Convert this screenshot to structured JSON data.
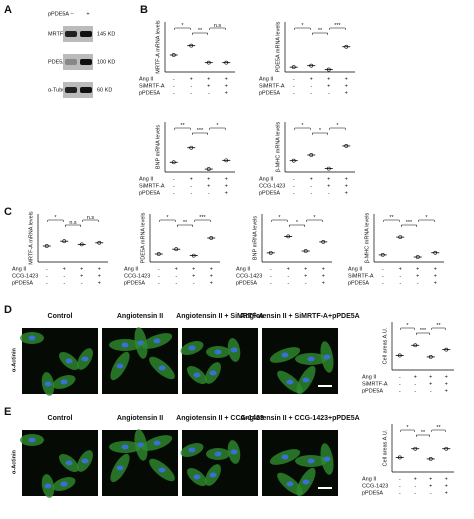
{
  "panel_a": {
    "letter": "A",
    "label": "pPDE5A",
    "signs": [
      "−",
      "+"
    ],
    "bands": [
      {
        "name": "MRTF-A",
        "size": "145 KD"
      },
      {
        "name": "PDE5A",
        "size": "100 KD"
      },
      {
        "name": "α-Tubulin",
        "size": "60 KD"
      }
    ]
  },
  "panel_b": {
    "letter": "B",
    "plots": [
      {
        "y_label": "MRTF-A mRNA levels",
        "means": [
          1,
          1.55,
          0.55,
          0.55
        ],
        "ylim": [
          0,
          2
        ],
        "rows": [
          {
            "label": "Ang II",
            "signs": [
              "-",
              "+",
              "+",
              "+"
            ]
          },
          {
            "label": "SiMRTF-A",
            "signs": [
              "-",
              "-",
              "+",
              "+"
            ]
          },
          {
            "label": "pPDE5A",
            "signs": [
              "-",
              "-",
              "-",
              "+"
            ]
          }
        ],
        "significance": [
          "*",
          "**",
          "n.s"
        ]
      },
      {
        "y_label": "PDE5A mRNA levels",
        "means": [
          1,
          1.3,
          0.5,
          5.2
        ],
        "ylim": [
          0,
          7
        ],
        "rows": [
          {
            "label": "Ang II",
            "signs": [
              "-",
              "+",
              "+",
              "+"
            ]
          },
          {
            "label": "SiMRTF-A",
            "signs": [
              "-",
              "-",
              "+",
              "+"
            ]
          },
          {
            "label": "pPDE5A",
            "signs": [
              "-",
              "-",
              "-",
              "+"
            ]
          }
        ],
        "significance": [
          "*",
          "**",
          "***"
        ]
      },
      {
        "y_label": "BNP mRNA levels",
        "means": [
          1,
          2.5,
          0.3,
          1.2
        ],
        "ylim": [
          0,
          3.5
        ],
        "rows": [
          {
            "label": "Ang II",
            "signs": [
              "-",
              "+",
              "+",
              "+"
            ]
          },
          {
            "label": "SiMRTF-A",
            "signs": [
              "-",
              "-",
              "+",
              "+"
            ]
          },
          {
            "label": "pPDE5A",
            "signs": [
              "-",
              "-",
              "-",
              "+"
            ]
          }
        ],
        "significance": [
          "**",
          "***",
          "*"
        ]
      },
      {
        "y_label": "β-MHC mRNA levels",
        "means": [
          1,
          1.5,
          0.3,
          2.3
        ],
        "ylim": [
          0,
          3
        ],
        "rows": [
          {
            "label": "Ang II",
            "signs": [
              "-",
              "+",
              "+",
              "+"
            ]
          },
          {
            "label": "CCG-1423",
            "signs": [
              "-",
              "-",
              "+",
              "+"
            ]
          },
          {
            "label": "pPDE5A",
            "signs": [
              "-",
              "-",
              "-",
              "+"
            ]
          }
        ],
        "significance": [
          "*",
          "*",
          "*"
        ]
      }
    ]
  },
  "panel_c": {
    "letter": "C",
    "plots": [
      {
        "y_label": "MRTF-A mRNA levels",
        "means": [
          1,
          1.3,
          1.1,
          1.2
        ],
        "ylim": [
          0,
          2
        ],
        "rows": [
          {
            "label": "Ang II",
            "signs": [
              "-",
              "+",
              "+",
              "+"
            ]
          },
          {
            "label": "CCG-1423",
            "signs": [
              "-",
              "-",
              "+",
              "+"
            ]
          },
          {
            "label": "pPDE5A",
            "signs": [
              "-",
              "-",
              "-",
              "+"
            ]
          }
        ],
        "significance": [
          "*",
          "n.s",
          "n.s"
        ]
      },
      {
        "y_label": "PDE5A mRNA levels",
        "means": [
          1,
          1.6,
          0.8,
          3
        ],
        "ylim": [
          0,
          4
        ],
        "rows": [
          {
            "label": "Ang II",
            "signs": [
              "-",
              "+",
              "+",
              "+"
            ]
          },
          {
            "label": "CCG-1423",
            "signs": [
              "-",
              "-",
              "+",
              "+"
            ]
          },
          {
            "label": "pPDE5A",
            "signs": [
              "-",
              "-",
              "-",
              "+"
            ]
          }
        ],
        "significance": [
          "*",
          "**",
          "***"
        ]
      },
      {
        "y_label": "BNP mRNA levels",
        "means": [
          1,
          2.8,
          1.2,
          2.2
        ],
        "ylim": [
          0,
          3.5
        ],
        "rows": [
          {
            "label": "Ang II",
            "signs": [
              "-",
              "+",
              "+",
              "+"
            ]
          },
          {
            "label": "CCG-1423",
            "signs": [
              "-",
              "-",
              "+",
              "+"
            ]
          },
          {
            "label": "pPDE5A",
            "signs": [
              "-",
              "-",
              "-",
              "+"
            ]
          }
        ],
        "significance": [
          "*",
          "*",
          "*"
        ]
      },
      {
        "y_label": "β-MHC mRNA levels",
        "means": [
          1,
          3.5,
          0.7,
          1.3
        ],
        "ylim": [
          0,
          4.5
        ],
        "rows": [
          {
            "label": "Ang II",
            "signs": [
              "-",
              "+",
              "+",
              "+"
            ]
          },
          {
            "label": "SiMRTF-A",
            "signs": [
              "-",
              "-",
              "+",
              "+"
            ]
          },
          {
            "label": "pPDE5A",
            "signs": [
              "-",
              "-",
              "-",
              "+"
            ]
          }
        ],
        "significance": [
          "**",
          "***",
          "*"
        ]
      }
    ]
  },
  "panel_d": {
    "letter": "D",
    "stain": "α-Actinin",
    "conditions": [
      "Control",
      "Angiotensin II",
      "Angiotensin II + SiMRTF-A",
      "Angiotensin II + SiMRTF-A+pPDE5A"
    ],
    "plot": {
      "y_label": "Cell areas  A.U.",
      "means": [
        1,
        1.7,
        0.9,
        1.4
      ],
      "ylim": [
        0,
        2.2
      ],
      "rows": [
        {
          "label": "Ang II",
          "signs": [
            "-",
            "+",
            "+",
            "+"
          ]
        },
        {
          "label": "SiMRTF-A",
          "signs": [
            "-",
            "-",
            "+",
            "+"
          ]
        },
        {
          "label": "pPDE5A",
          "signs": [
            "-",
            "-",
            "-",
            "+"
          ]
        }
      ],
      "significance": [
        "*",
        "***",
        "**"
      ]
    }
  },
  "panel_e": {
    "letter": "E",
    "stain": "α-Actinin",
    "conditions": [
      "Control",
      "Angiotensin II",
      "Angiotensin II + CCG-1423",
      "Angiotensin II + CCG-1423+pPDE5A"
    ],
    "plot": {
      "y_label": "Cell areas  A.U.",
      "means": [
        1,
        1.6,
        0.9,
        1.6
      ],
      "ylim": [
        0,
        2.2
      ],
      "rows": [
        {
          "label": "Ang II",
          "signs": [
            "-",
            "+",
            "+",
            "+"
          ]
        },
        {
          "label": "CCG-1423",
          "signs": [
            "-",
            "-",
            "+",
            "+"
          ]
        },
        {
          "label": "pPDE5A",
          "signs": [
            "-",
            "-",
            "-",
            "+"
          ]
        }
      ],
      "significance": [
        "*",
        "**",
        "**"
      ]
    }
  }
}
